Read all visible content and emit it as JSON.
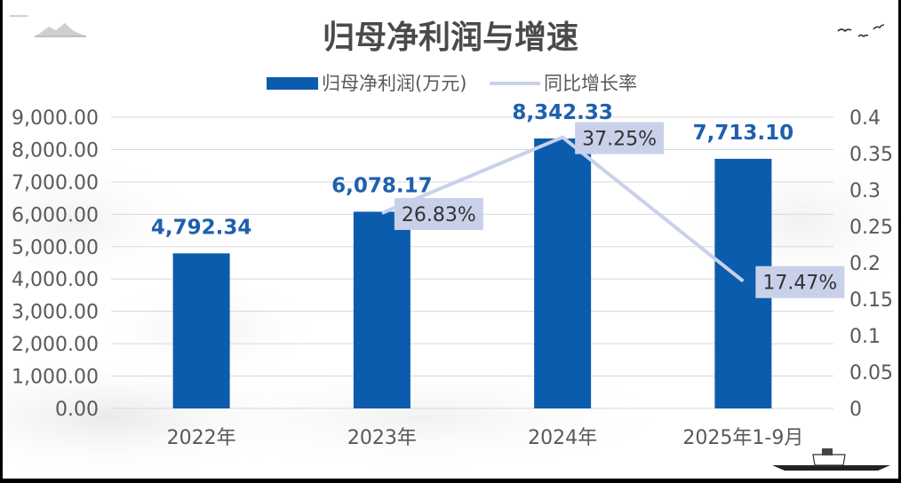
{
  "chart_data": {
    "type": "bar",
    "title": "归母净利润与增速",
    "categories": [
      "2022年",
      "2023年",
      "2024年",
      "2025年1-9月"
    ],
    "series": [
      {
        "name": "归母净利润(万元)",
        "type": "bar",
        "axis": "left",
        "values": [
          4792.34,
          6078.17,
          8342.33,
          7713.1
        ],
        "data_labels": [
          "4,792.34",
          "6,078.17",
          "8,342.33",
          "7,713.10"
        ]
      },
      {
        "name": "同比增长率",
        "type": "line",
        "axis": "right",
        "values": [
          null,
          0.2683,
          0.3725,
          0.1747
        ],
        "data_labels": [
          "",
          "26.83%",
          "37.25%",
          "17.47%"
        ]
      }
    ],
    "y_left": {
      "ylim": [
        0,
        9000
      ],
      "ticks": [
        "9,000.00",
        "8,000.00",
        "7,000.00",
        "6,000.00",
        "5,000.00",
        "4,000.00",
        "3,000.00",
        "2,000.00",
        "1,000.00",
        "0.00"
      ]
    },
    "y_right": {
      "ylim": [
        0,
        0.4
      ],
      "ticks": [
        "0.4",
        "0.35",
        "0.3",
        "0.25",
        "0.2",
        "0.15",
        "0.1",
        "0.05",
        "0"
      ]
    },
    "grid": true,
    "legend_position": "top-center"
  },
  "colors": {
    "bar": "#0b5cad",
    "bar_label": "#1f5fae",
    "line": "#c9d1ea",
    "line_label_bg": "#c9d1ea",
    "axis_text": "#595959",
    "grid": "#d9d9d9"
  }
}
